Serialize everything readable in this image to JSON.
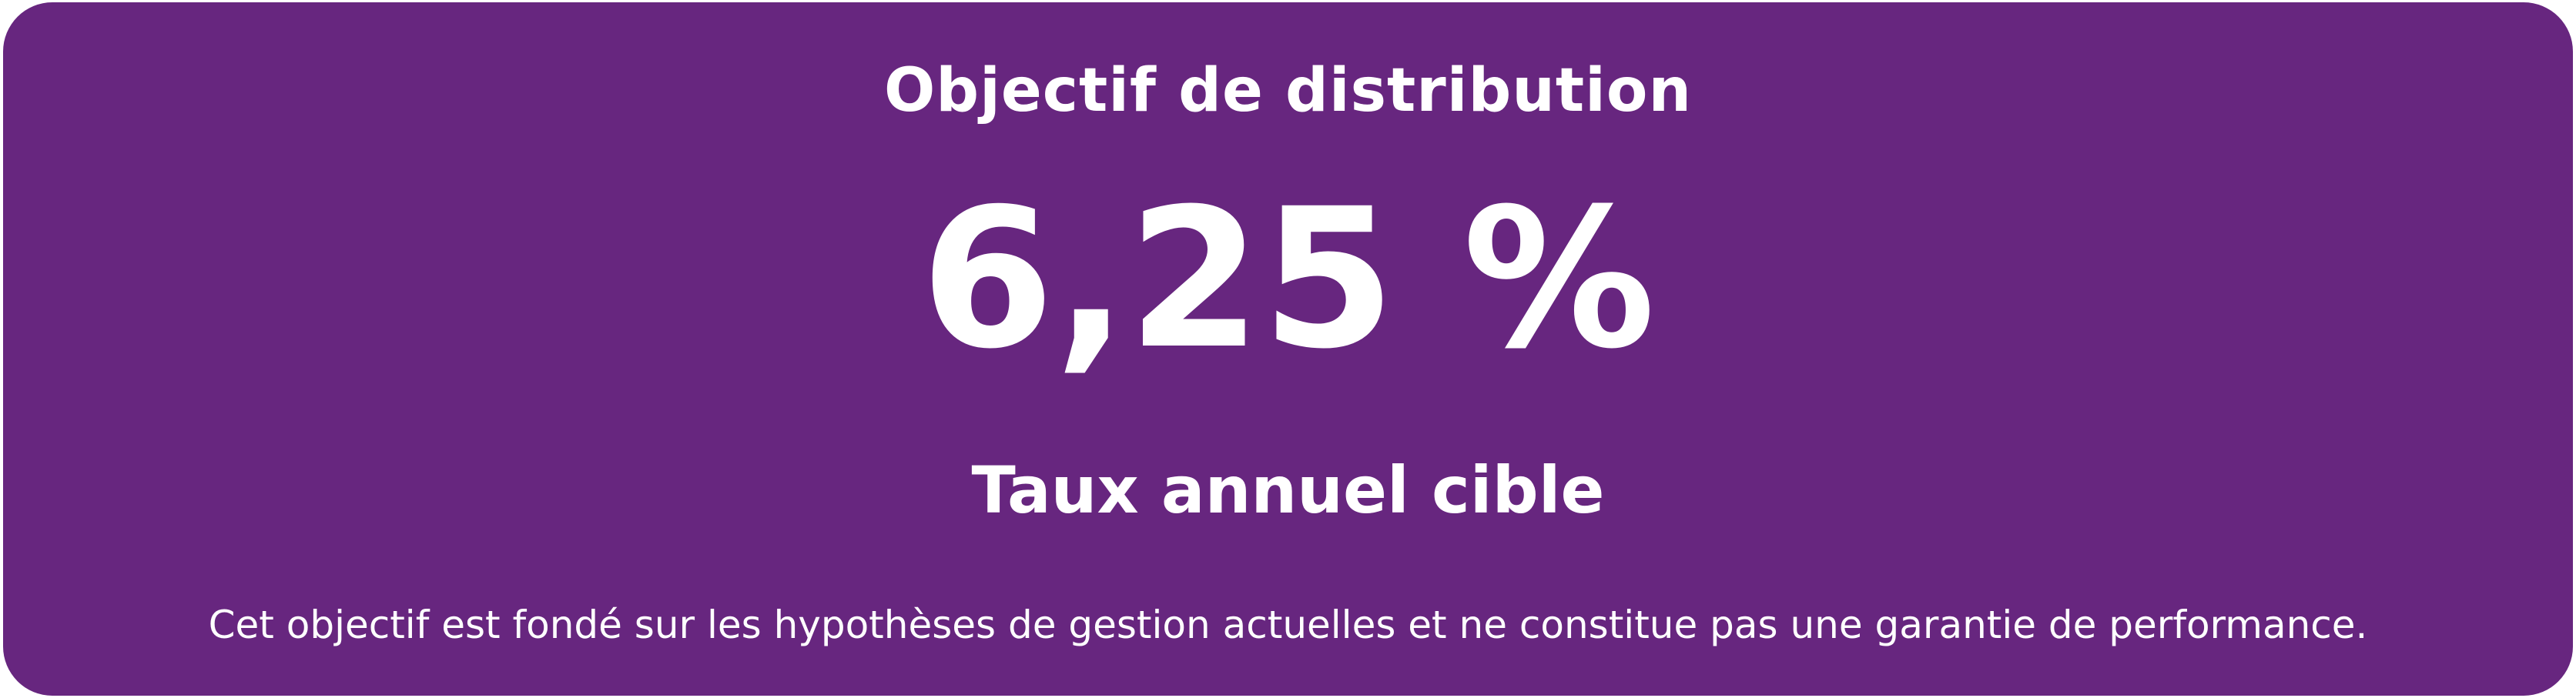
{
  "card": {
    "title": "Objectif de distribution",
    "value": "6,25 %",
    "label": "Taux annuel cible",
    "note": "Cet objectif est fondé sur les hypothèses de gestion actuelles et ne constitue pas une garantie de performance."
  }
}
